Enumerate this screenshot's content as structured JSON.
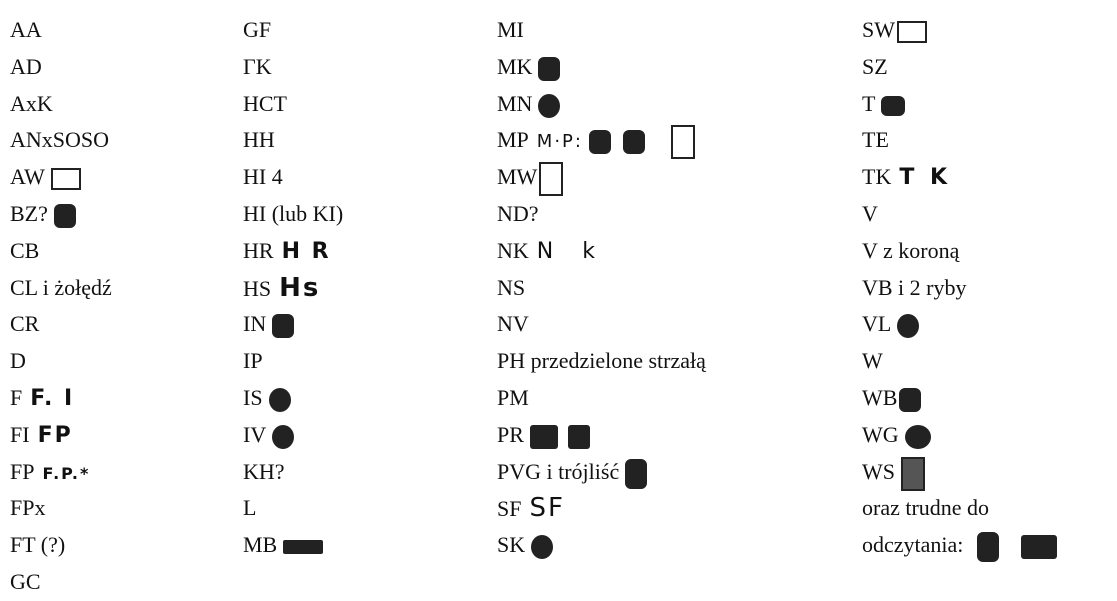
{
  "columns": [
    [
      {
        "label": "AA"
      },
      {
        "label": "AD"
      },
      {
        "label": "AxK"
      },
      {
        "label": "ANxSOSO"
      },
      {
        "label": "AW"
      },
      {
        "label": "BZ?"
      },
      {
        "label": "CB"
      },
      {
        "label": "CL i żołędź"
      },
      {
        "label": "CR"
      },
      {
        "label": "D"
      },
      {
        "label": "F",
        "stamp": "F. I"
      },
      {
        "label": "FI",
        "stamp": "FP"
      },
      {
        "label": "FP",
        "stamp": "F.P.*"
      },
      {
        "label": "FPx"
      },
      {
        "label": "FT (?)"
      },
      {
        "label": "GC"
      }
    ],
    [
      {
        "label": "GF"
      },
      {
        "label": "ΓK"
      },
      {
        "label": "HCT"
      },
      {
        "label": "HH"
      },
      {
        "label": "HI 4"
      },
      {
        "label": "HI (lub KI)"
      },
      {
        "label": "HR",
        "stamp": "H R"
      },
      {
        "label": "HS",
        "stamp": "Hs"
      },
      {
        "label": "IN"
      },
      {
        "label": "IP"
      },
      {
        "label": "IS"
      },
      {
        "label": "IV"
      },
      {
        "label": "KH?"
      },
      {
        "label": "L"
      },
      {
        "label": "MB"
      }
    ],
    [
      {
        "label": "MI"
      },
      {
        "label": "MK"
      },
      {
        "label": "MN"
      },
      {
        "label": "MP",
        "stamp": "M·P:"
      },
      {
        "label": "MW"
      },
      {
        "label": "ND?"
      },
      {
        "label": "NK",
        "stamp": "N k"
      },
      {
        "label": "NS"
      },
      {
        "label": "NV"
      },
      {
        "label": "PH przedzielone strzałą"
      },
      {
        "label": "PM"
      },
      {
        "label": "PR"
      },
      {
        "label": "PVG i trójliść"
      },
      {
        "label": "SF",
        "stamp": "SF"
      },
      {
        "label": "SK"
      }
    ],
    [
      {
        "label": "SW"
      },
      {
        "label": "SZ"
      },
      {
        "label": "T"
      },
      {
        "label": "TE"
      },
      {
        "label": "TK",
        "stamp": "T K"
      },
      {
        "label": "V"
      },
      {
        "label": "V z koroną"
      },
      {
        "label": "VB i 2 ryby"
      },
      {
        "label": "VL"
      },
      {
        "label": "W"
      },
      {
        "label": "WB"
      },
      {
        "label": "WG"
      },
      {
        "label": "WS"
      },
      {
        "label": "oraz trudne do"
      },
      {
        "label": "odczytania:"
      }
    ]
  ]
}
